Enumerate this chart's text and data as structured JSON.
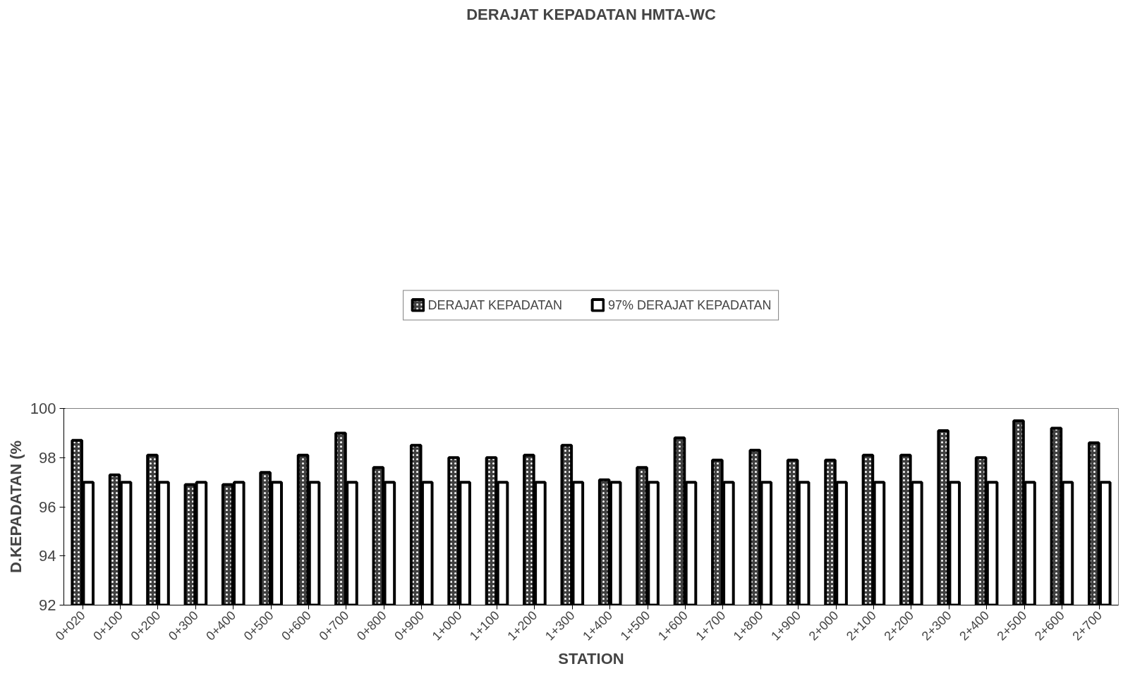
{
  "chart_data": {
    "type": "bar",
    "title": "DERAJAT KEPADATAN HMTA-WC",
    "xlabel": "STATION",
    "ylabel": "D.KEPADATAN (%",
    "categories": [
      "0+020",
      "0+100",
      "0+200",
      "0+300",
      "0+400",
      "0+500",
      "0+600",
      "0+700",
      "0+800",
      "0+900",
      "1+000",
      "1+100",
      "1+200",
      "1+300",
      "1+400",
      "1+500",
      "1+600",
      "1+700",
      "1+800",
      "1+900",
      "2+000",
      "2+100",
      "2+200",
      "2+300",
      "2+400",
      "2+500",
      "2+600",
      "2+700"
    ],
    "series": [
      {
        "name": "DERAJAT KEPADATAN",
        "color": "#404040",
        "values": [
          98.7,
          97.3,
          98.1,
          96.9,
          96.9,
          97.4,
          98.1,
          99.0,
          97.6,
          98.5,
          98.0,
          98.0,
          98.1,
          98.5,
          97.1,
          97.6,
          98.8,
          97.9,
          98.3,
          97.9,
          97.9,
          98.1,
          98.1,
          99.1,
          98.0,
          99.5,
          99.2,
          98.6
        ]
      },
      {
        "name": "97% DERAJAT KEPADATAN",
        "color": "#ffffff",
        "values": [
          97,
          97,
          97,
          97,
          97,
          97,
          97,
          97,
          97,
          97,
          97,
          97,
          97,
          97,
          97,
          97,
          97,
          97,
          97,
          97,
          97,
          97,
          97,
          97,
          97,
          97,
          97,
          97
        ]
      }
    ],
    "ylim": [
      92,
      100
    ],
    "yticks": [
      92,
      94,
      96,
      98,
      100
    ],
    "grid": false,
    "legend": "top"
  }
}
